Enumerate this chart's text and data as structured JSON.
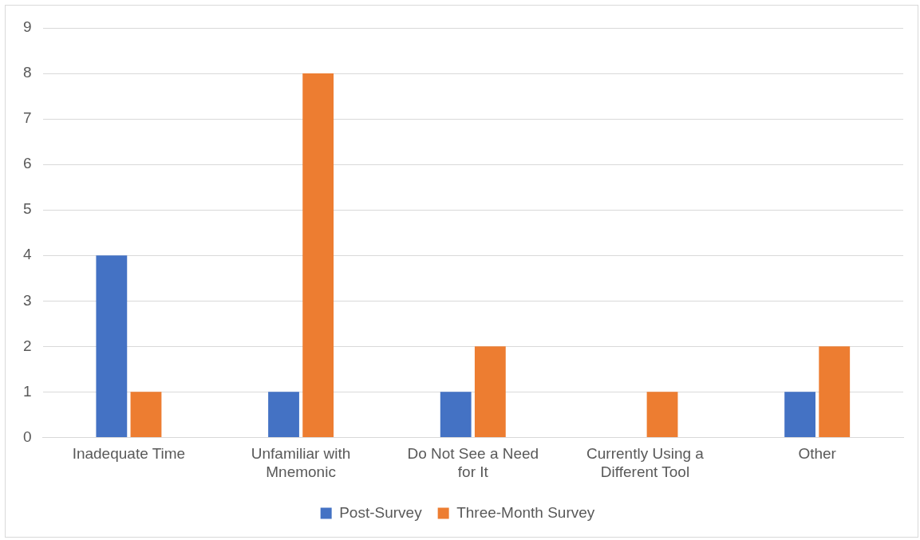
{
  "chart_data": {
    "type": "bar",
    "categories": [
      "Inadequate Time",
      "Unfamiliar with Mnemonic",
      "Do Not See a Need for It",
      "Currently Using a Different Tool",
      "Other"
    ],
    "series": [
      {
        "name": "Post-Survey",
        "color": "#4472c4",
        "values": [
          4,
          1,
          1,
          0,
          1
        ]
      },
      {
        "name": "Three-Month Survey",
        "color": "#ed7d31",
        "values": [
          1,
          8,
          2,
          1,
          2
        ]
      }
    ],
    "ylim": [
      0,
      9
    ],
    "yticks": [
      0,
      1,
      2,
      3,
      4,
      5,
      6,
      7,
      8,
      9
    ],
    "grid": "y",
    "legend": "bottom"
  }
}
